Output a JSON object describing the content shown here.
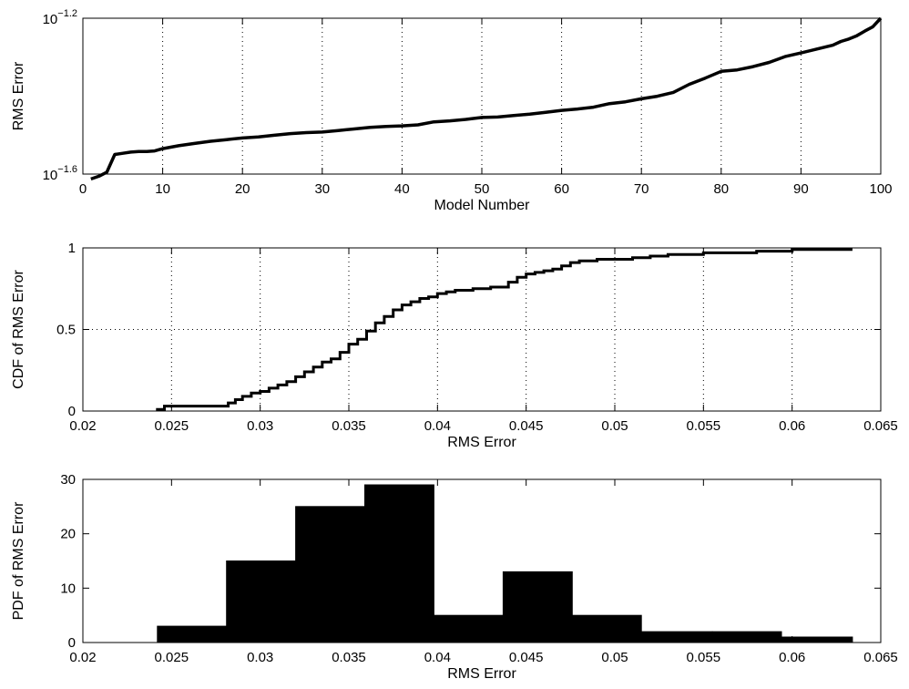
{
  "chart_data": [
    {
      "type": "line",
      "xlabel": "Model Number",
      "ylabel": "RMS Error",
      "xlim": [
        0,
        100
      ],
      "ylim": [
        0.02512,
        0.0631
      ],
      "yscale": "log",
      "grid": true,
      "xticks": [
        0,
        10,
        20,
        30,
        40,
        50,
        60,
        70,
        80,
        90,
        100
      ],
      "yticks": [
        {
          "value": 0.02512,
          "label_base": "10",
          "label_exp": "−1.6"
        },
        {
          "value": 0.0631,
          "label_base": "10",
          "label_exp": "−1.2"
        }
      ],
      "x": [
        1,
        2,
        3,
        4,
        5,
        6,
        7,
        8,
        9,
        10,
        12,
        14,
        16,
        18,
        20,
        22,
        24,
        26,
        28,
        30,
        32,
        34,
        36,
        38,
        40,
        42,
        44,
        46,
        48,
        50,
        52,
        54,
        56,
        58,
        60,
        62,
        64,
        66,
        68,
        70,
        72,
        74,
        76,
        78,
        80,
        82,
        84,
        86,
        88,
        90,
        92,
        94,
        95,
        96,
        97,
        98,
        99,
        100
      ],
      "y": [
        0.0244,
        0.0248,
        0.0254,
        0.0282,
        0.0284,
        0.0286,
        0.0287,
        0.0287,
        0.0288,
        0.0292,
        0.0297,
        0.0301,
        0.0305,
        0.0308,
        0.0311,
        0.0313,
        0.0316,
        0.0319,
        0.0321,
        0.0322,
        0.0325,
        0.0328,
        0.0331,
        0.0333,
        0.0334,
        0.0336,
        0.0342,
        0.0344,
        0.0347,
        0.0351,
        0.0352,
        0.0355,
        0.0358,
        0.0362,
        0.0366,
        0.0369,
        0.0373,
        0.0381,
        0.0385,
        0.0392,
        0.0398,
        0.0407,
        0.0427,
        0.0443,
        0.0461,
        0.0465,
        0.0474,
        0.0486,
        0.0503,
        0.0514,
        0.0526,
        0.0538,
        0.055,
        0.0558,
        0.0569,
        0.0585,
        0.06,
        0.0631
      ]
    },
    {
      "type": "line",
      "xlabel": "RMS Error",
      "ylabel": "CDF of RMS Error",
      "xlim": [
        0.02,
        0.065
      ],
      "ylim": [
        0,
        1
      ],
      "grid": true,
      "xticks": [
        "0.02",
        "0.025",
        "0.03",
        "0.035",
        "0.04",
        "0.045",
        "0.05",
        "0.055",
        "0.06",
        "0.065"
      ],
      "yticks": [
        "0",
        "0.5",
        "1"
      ],
      "x": [
        0.0242,
        0.0246,
        0.0282,
        0.0286,
        0.029,
        0.0295,
        0.03,
        0.0305,
        0.031,
        0.0315,
        0.032,
        0.0325,
        0.033,
        0.0335,
        0.034,
        0.0345,
        0.035,
        0.0355,
        0.036,
        0.0365,
        0.037,
        0.0375,
        0.038,
        0.0385,
        0.039,
        0.0395,
        0.04,
        0.0405,
        0.041,
        0.042,
        0.043,
        0.044,
        0.0445,
        0.045,
        0.0455,
        0.046,
        0.0465,
        0.047,
        0.0475,
        0.048,
        0.049,
        0.05,
        0.051,
        0.052,
        0.053,
        0.054,
        0.055,
        0.056,
        0.058,
        0.06,
        0.0634
      ],
      "y": [
        0.01,
        0.03,
        0.05,
        0.07,
        0.09,
        0.11,
        0.12,
        0.14,
        0.16,
        0.18,
        0.21,
        0.24,
        0.27,
        0.3,
        0.32,
        0.36,
        0.41,
        0.44,
        0.49,
        0.54,
        0.58,
        0.62,
        0.65,
        0.67,
        0.69,
        0.7,
        0.72,
        0.73,
        0.74,
        0.75,
        0.76,
        0.79,
        0.82,
        0.84,
        0.85,
        0.86,
        0.87,
        0.89,
        0.91,
        0.92,
        0.93,
        0.93,
        0.94,
        0.95,
        0.96,
        0.96,
        0.97,
        0.97,
        0.98,
        0.99,
        0.99
      ]
    },
    {
      "type": "bar",
      "xlabel": "RMS Error",
      "ylabel": "PDF of RMS Error",
      "xlim": [
        0.02,
        0.065
      ],
      "ylim": [
        0,
        30
      ],
      "grid": false,
      "xticks": [
        "0.02",
        "0.025",
        "0.03",
        "0.035",
        "0.04",
        "0.045",
        "0.05",
        "0.055",
        "0.06",
        "0.065"
      ],
      "yticks": [
        "0",
        "10",
        "20",
        "30"
      ],
      "bin_edges": [
        0.0242,
        0.0281,
        0.032,
        0.0359,
        0.0398,
        0.0437,
        0.0476,
        0.0515,
        0.0555,
        0.0594,
        0.0634
      ],
      "values": [
        3,
        15,
        25,
        29,
        5,
        13,
        5,
        2,
        2,
        1
      ]
    }
  ]
}
